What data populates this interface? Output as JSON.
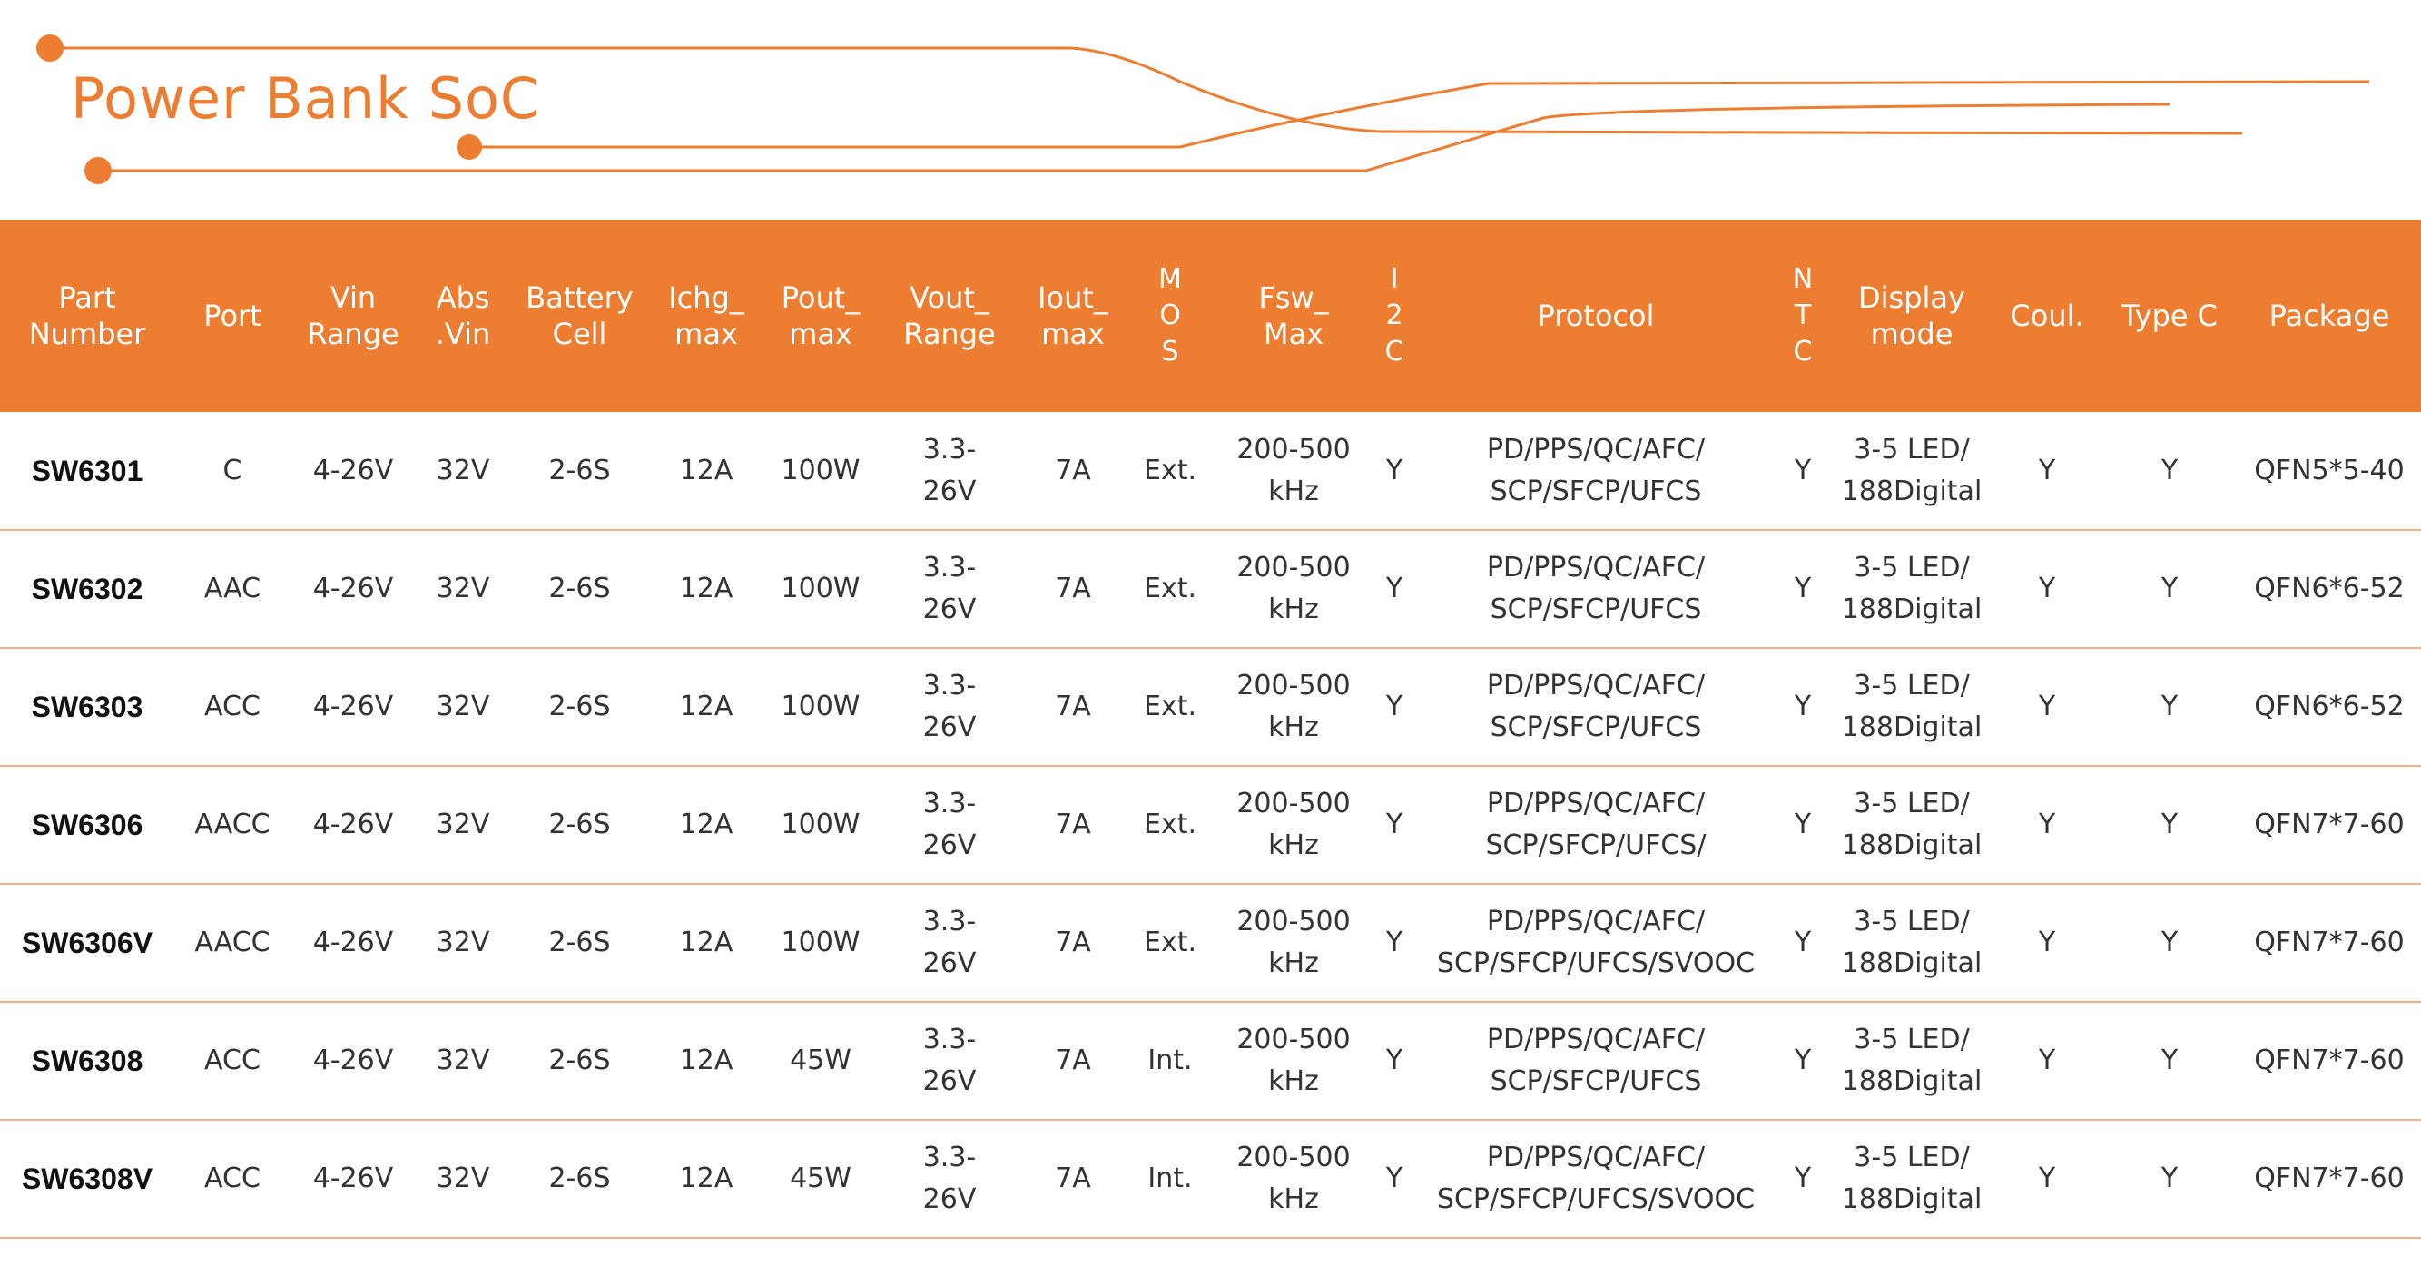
{
  "header": {
    "title": "Power Bank SoC"
  },
  "theme": {
    "accent": "#ED7D31",
    "row_divider": "#F4B183"
  },
  "table": {
    "columns": [
      "Part\nNumber",
      "Port",
      "Vin\nRange",
      "Abs\n.Vin",
      "Battery\nCell",
      "Ichg_\nmax",
      "Pout_\nmax",
      "Vout_\nRange",
      "Iout_\nmax",
      "M\nO\nS",
      "Fsw_\nMax",
      "I\n2\nC",
      "Protocol",
      "N\nT\nC",
      "Display\nmode",
      "Coul.",
      "Type C",
      "Package"
    ],
    "rows": [
      [
        "SW6301",
        "C",
        "4-26V",
        "32V",
        "2-6S",
        "12A",
        "100W",
        "3.3-\n26V",
        "7A",
        "Ext.",
        "200-500\nkHz",
        "Y",
        "PD/PPS/QC/AFC/\nSCP/SFCP/UFCS",
        "Y",
        "3-5 LED/\n188Digital",
        "Y",
        "Y",
        "QFN5*5-40"
      ],
      [
        "SW6302",
        "AAC",
        "4-26V",
        "32V",
        "2-6S",
        "12A",
        "100W",
        "3.3-\n26V",
        "7A",
        "Ext.",
        "200-500\nkHz",
        "Y",
        "PD/PPS/QC/AFC/\nSCP/SFCP/UFCS",
        "Y",
        "3-5 LED/\n188Digital",
        "Y",
        "Y",
        "QFN6*6-52"
      ],
      [
        "SW6303",
        "ACC",
        "4-26V",
        "32V",
        "2-6S",
        "12A",
        "100W",
        "3.3-\n26V",
        "7A",
        "Ext.",
        "200-500\nkHz",
        "Y",
        "PD/PPS/QC/AFC/\nSCP/SFCP/UFCS",
        "Y",
        "3-5 LED/\n188Digital",
        "Y",
        "Y",
        "QFN6*6-52"
      ],
      [
        "SW6306",
        "AACC",
        "4-26V",
        "32V",
        "2-6S",
        "12A",
        "100W",
        "3.3-\n26V",
        "7A",
        "Ext.",
        "200-500\nkHz",
        "Y",
        "PD/PPS/QC/AFC/\nSCP/SFCP/UFCS/",
        "Y",
        "3-5 LED/\n188Digital",
        "Y",
        "Y",
        "QFN7*7-60"
      ],
      [
        "SW6306V",
        "AACC",
        "4-26V",
        "32V",
        "2-6S",
        "12A",
        "100W",
        "3.3-\n26V",
        "7A",
        "Ext.",
        "200-500\nkHz",
        "Y",
        "PD/PPS/QC/AFC/\nSCP/SFCP/UFCS/SVOOC",
        "Y",
        "3-5 LED/\n188Digital",
        "Y",
        "Y",
        "QFN7*7-60"
      ],
      [
        "SW6308",
        "ACC",
        "4-26V",
        "32V",
        "2-6S",
        "12A",
        "45W",
        "3.3-\n26V",
        "7A",
        "Int.",
        "200-500\nkHz",
        "Y",
        "PD/PPS/QC/AFC/\nSCP/SFCP/UFCS",
        "Y",
        "3-5 LED/\n188Digital",
        "Y",
        "Y",
        "QFN7*7-60"
      ],
      [
        "SW6308V",
        "ACC",
        "4-26V",
        "32V",
        "2-6S",
        "12A",
        "45W",
        "3.3-\n26V",
        "7A",
        "Int.",
        "200-500\nkHz",
        "Y",
        "PD/PPS/QC/AFC/\nSCP/SFCP/UFCS/SVOOC",
        "Y",
        "3-5 LED/\n188Digital",
        "Y",
        "Y",
        "QFN7*7-60"
      ]
    ]
  }
}
